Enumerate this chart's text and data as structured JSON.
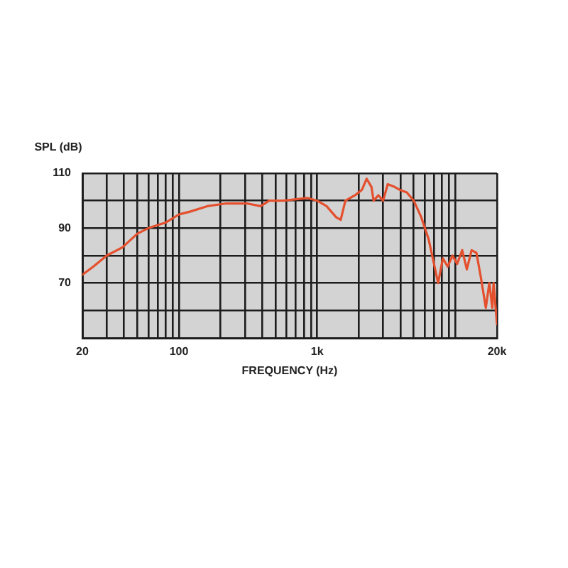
{
  "chart_data": {
    "type": "line",
    "xlabel": "FREQUENCY (Hz)",
    "ylabel": "SPL (dB)",
    "x": [
      20,
      24,
      30,
      39,
      50,
      60,
      80,
      100,
      120,
      160,
      220,
      310,
      390,
      450,
      570,
      850,
      1000,
      1170,
      1370,
      1480,
      1600,
      1880,
      2110,
      2280,
      2470,
      2560,
      2770,
      3000,
      3240,
      3640,
      3940,
      4450,
      5000,
      5660,
      6400,
      6930,
      7500,
      8120,
      8800,
      9530,
      10300,
      11200,
      12100,
      13100,
      14200,
      15300,
      16600,
      17600,
      18500,
      18900,
      20000
    ],
    "values": [
      73,
      76,
      80,
      83,
      88,
      90,
      92,
      95,
      96,
      98,
      99,
      99,
      98,
      100,
      100,
      101,
      100,
      98,
      94,
      93,
      100,
      102,
      104,
      108,
      105,
      100,
      102,
      100,
      106,
      105,
      104,
      103,
      100,
      94,
      86,
      78,
      70,
      79,
      76,
      80,
      77,
      82,
      75,
      82,
      81,
      72,
      61,
      70,
      61,
      70,
      55
    ],
    "color": "#e4502d",
    "log": "x",
    "xlim": [
      20,
      20000
    ],
    "xticks": [
      20,
      {
        "value": 30,
        "label": null
      },
      {
        "value": 40,
        "label": null
      },
      {
        "value": 50,
        "label": null
      },
      {
        "value": 60,
        "label": null
      },
      {
        "value": 70,
        "label": null
      },
      {
        "value": 80,
        "label": null
      },
      {
        "value": 90,
        "label": null
      },
      100,
      {
        "value": 200,
        "label": null
      },
      {
        "value": 300,
        "label": null
      },
      {
        "value": 400,
        "label": null
      },
      {
        "value": 500,
        "label": null
      },
      {
        "value": 600,
        "label": null
      },
      {
        "value": 700,
        "label": null
      },
      {
        "value": 800,
        "label": null
      },
      {
        "value": 900,
        "label": null
      },
      {
        "value": 1000,
        "label": "1k"
      },
      {
        "value": 2000,
        "label": null
      },
      {
        "value": 3000,
        "label": null
      },
      {
        "value": 4000,
        "label": null
      },
      {
        "value": 5000,
        "label": null
      },
      {
        "value": 6000,
        "label": null
      },
      {
        "value": 7000,
        "label": null
      },
      {
        "value": 8000,
        "label": null
      },
      {
        "value": 9000,
        "label": null
      },
      {
        "value": 10000,
        "label": null
      },
      {
        "value": 20000,
        "label": "20k"
      }
    ],
    "ylim": [
      50,
      110
    ],
    "yticks": [
      {
        "value": 50,
        "label": null
      },
      {
        "value": 60,
        "label": null
      },
      70,
      {
        "value": 80,
        "label": null
      },
      90,
      {
        "value": 100,
        "label": null
      },
      110
    ],
    "grid": true,
    "marker": "none"
  }
}
